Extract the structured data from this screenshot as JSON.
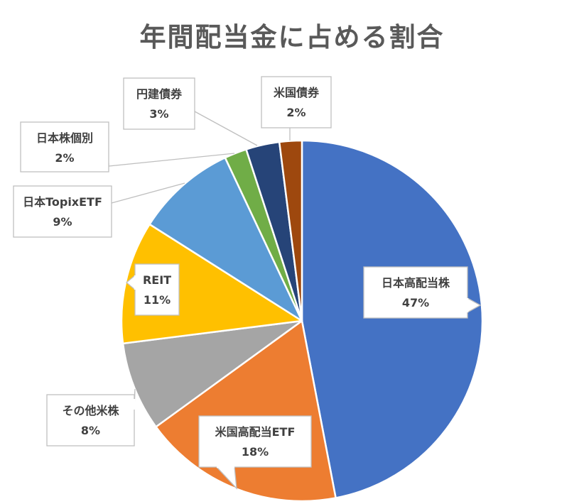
{
  "chart_data": {
    "type": "pie",
    "title": "年間配当金に占める割合",
    "start_angle_deg": 0,
    "direction": "clockwise",
    "slices": [
      {
        "label": "日本高配当株",
        "value": 47,
        "value_label": "47%",
        "color": "#4472C4"
      },
      {
        "label": "米国高配当ETF",
        "value": 18,
        "value_label": "18%",
        "color": "#ED7D31"
      },
      {
        "label": "その他米株",
        "value": 8,
        "value_label": "8%",
        "color": "#A5A5A5"
      },
      {
        "label": "REIT",
        "value": 11,
        "value_label": "11%",
        "color": "#FFC000"
      },
      {
        "label": "日本TopixETF",
        "value": 9,
        "value_label": "9%",
        "color": "#5B9BD5"
      },
      {
        "label": "日本株個別",
        "value": 2,
        "value_label": "2%",
        "color": "#70AD47"
      },
      {
        "label": "円建債券",
        "value": 3,
        "value_label": "3%",
        "color": "#264478"
      },
      {
        "label": "米国債券",
        "value": 2,
        "value_label": "2%",
        "color": "#9E480E"
      }
    ]
  }
}
